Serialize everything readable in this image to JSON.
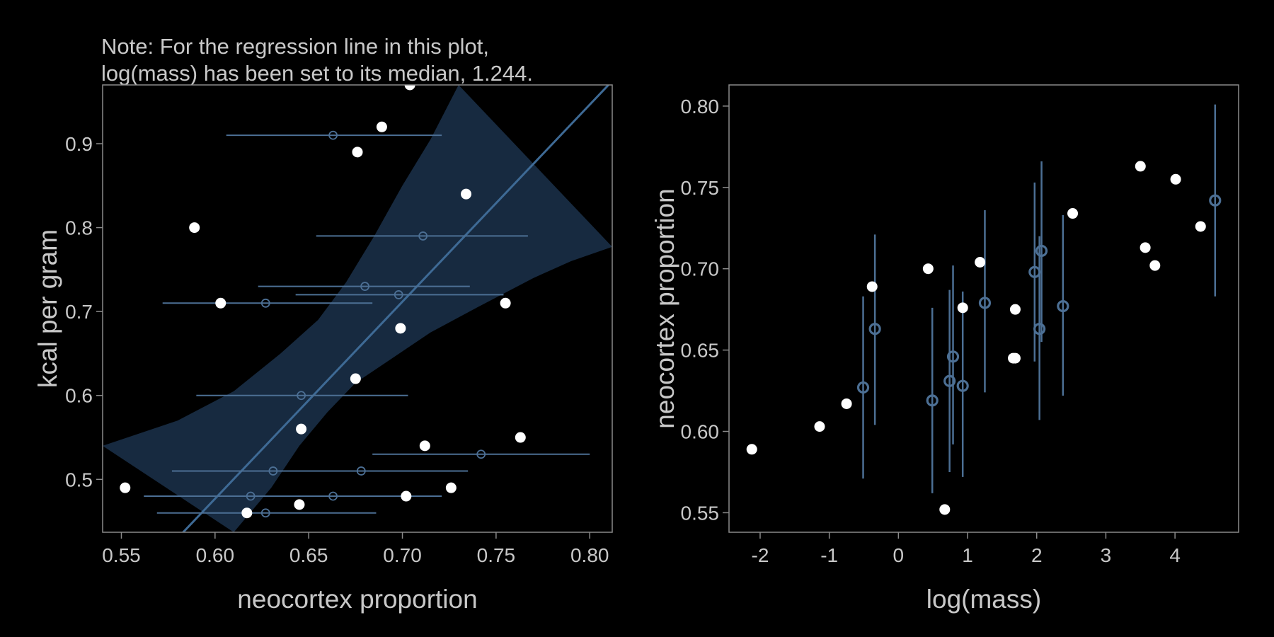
{
  "note": {
    "line1": "Note: For the regression line in this plot,",
    "line2": "log(mass) has been set to its median, 1.244."
  },
  "colors": {
    "background": "#000000",
    "observed_point": "#ffffff",
    "imputed_point": "#4c6f94",
    "band": "#172a40",
    "regression_line": "#3e6a95",
    "axis": "#8a8a8a",
    "text": "#c8c8c8"
  },
  "chart_data": [
    {
      "type": "scatter",
      "xlabel": "neocortex proportion",
      "ylabel": "kcal per gram",
      "xlim": [
        0.54,
        0.812
      ],
      "ylim": [
        0.437,
        0.97
      ],
      "xticks": [
        "0.55",
        "0.60",
        "0.65",
        "0.70",
        "0.75",
        "0.80"
      ],
      "yticks": [
        "0.5",
        "0.6",
        "0.7",
        "0.8",
        "0.9"
      ],
      "grid": false,
      "regression_line": {
        "x": [
          0.58,
          0.81
        ],
        "y": [
          0.43,
          0.97
        ]
      },
      "confidence_band": {
        "upper": [
          [
            0.54,
            0.54
          ],
          [
            0.58,
            0.57
          ],
          [
            0.61,
            0.605
          ],
          [
            0.635,
            0.65
          ],
          [
            0.655,
            0.69
          ],
          [
            0.67,
            0.735
          ],
          [
            0.685,
            0.79
          ],
          [
            0.7,
            0.85
          ],
          [
            0.715,
            0.905
          ],
          [
            0.73,
            0.97
          ]
        ],
        "lower": [
          [
            0.812,
            0.777
          ],
          [
            0.79,
            0.76
          ],
          [
            0.77,
            0.74
          ],
          [
            0.74,
            0.705
          ],
          [
            0.715,
            0.675
          ],
          [
            0.695,
            0.645
          ],
          [
            0.675,
            0.615
          ],
          [
            0.66,
            0.58
          ],
          [
            0.645,
            0.54
          ],
          [
            0.63,
            0.49
          ],
          [
            0.61,
            0.437
          ]
        ]
      },
      "series": [
        {
          "name": "observed",
          "points": [
            [
              0.552,
              0.49
            ],
            [
              0.589,
              0.8
            ],
            [
              0.603,
              0.71
            ],
            [
              0.617,
              0.46
            ],
            [
              0.645,
              0.47
            ],
            [
              0.646,
              0.56
            ],
            [
              0.675,
              0.62
            ],
            [
              0.676,
              0.89
            ],
            [
              0.689,
              0.92
            ],
            [
              0.699,
              0.68
            ],
            [
              0.702,
              0.48
            ],
            [
              0.704,
              0.97
            ],
            [
              0.712,
              0.54
            ],
            [
              0.726,
              0.49
            ],
            [
              0.734,
              0.84
            ],
            [
              0.755,
              0.71
            ],
            [
              0.763,
              0.55
            ]
          ]
        },
        {
          "name": "imputed",
          "points": [
            [
              0.663,
              0.91
            ],
            [
              0.711,
              0.79
            ],
            [
              0.68,
              0.73
            ],
            [
              0.698,
              0.72
            ],
            [
              0.627,
              0.71
            ],
            [
              0.646,
              0.6
            ],
            [
              0.742,
              0.53
            ],
            [
              0.631,
              0.51
            ],
            [
              0.678,
              0.51
            ],
            [
              0.619,
              0.48
            ],
            [
              0.663,
              0.48
            ],
            [
              0.627,
              0.46
            ]
          ],
          "x_intervals": [
            [
              0.606,
              0.721
            ],
            [
              0.654,
              0.767
            ],
            [
              0.623,
              0.736
            ],
            [
              0.643,
              0.754
            ],
            [
              0.572,
              0.684
            ],
            [
              0.59,
              0.703
            ],
            [
              0.684,
              0.8
            ],
            [
              0.577,
              0.689
            ],
            [
              0.621,
              0.735
            ],
            [
              0.562,
              0.676
            ],
            [
              0.605,
              0.721
            ],
            [
              0.569,
              0.686
            ]
          ]
        }
      ]
    },
    {
      "type": "scatter",
      "xlabel": "log(mass)",
      "ylabel": "neocortex proportion",
      "xlim": [
        -2.45,
        4.92
      ],
      "ylim": [
        0.538,
        0.813
      ],
      "xticks": [
        "-2",
        "-1",
        "0",
        "1",
        "2",
        "3",
        "4"
      ],
      "yticks": [
        "0.55",
        "0.60",
        "0.65",
        "0.70",
        "0.75",
        "0.80"
      ],
      "grid": false,
      "series": [
        {
          "name": "observed",
          "points": [
            [
              -2.12,
              0.589
            ],
            [
              -1.14,
              0.603
            ],
            [
              -0.75,
              0.617
            ],
            [
              -0.38,
              0.689
            ],
            [
              0.43,
              0.7
            ],
            [
              0.67,
              0.552
            ],
            [
              0.93,
              0.676
            ],
            [
              1.18,
              0.704
            ],
            [
              1.66,
              0.645
            ],
            [
              1.69,
              0.645
            ],
            [
              1.69,
              0.675
            ],
            [
              2.52,
              0.734
            ],
            [
              3.5,
              0.763
            ],
            [
              3.57,
              0.713
            ],
            [
              3.71,
              0.702
            ],
            [
              4.01,
              0.755
            ],
            [
              4.37,
              0.726
            ]
          ]
        },
        {
          "name": "imputed",
          "points": [
            [
              -0.51,
              0.627
            ],
            [
              -0.34,
              0.663
            ],
            [
              0.49,
              0.619
            ],
            [
              0.74,
              0.631
            ],
            [
              0.79,
              0.646
            ],
            [
              0.93,
              0.628
            ],
            [
              1.25,
              0.679
            ],
            [
              1.97,
              0.698
            ],
            [
              2.04,
              0.663
            ],
            [
              2.07,
              0.711
            ],
            [
              2.38,
              0.677
            ],
            [
              4.58,
              0.742
            ]
          ],
          "y_intervals": [
            [
              0.571,
              0.683
            ],
            [
              0.604,
              0.721
            ],
            [
              0.562,
              0.676
            ],
            [
              0.575,
              0.687
            ],
            [
              0.592,
              0.702
            ],
            [
              0.572,
              0.686
            ],
            [
              0.624,
              0.736
            ],
            [
              0.643,
              0.753
            ],
            [
              0.607,
              0.72
            ],
            [
              0.655,
              0.766
            ],
            [
              0.622,
              0.733
            ],
            [
              0.683,
              0.801
            ]
          ]
        }
      ]
    }
  ]
}
